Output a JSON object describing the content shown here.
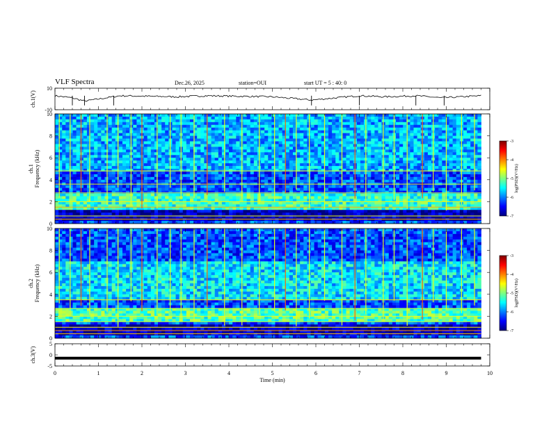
{
  "header": {
    "title": "VLF Spectra",
    "date": "Dec.26, 2025",
    "station": "station=OUI",
    "start": "start UT =  5 : 40: 0"
  },
  "chart_data": [
    {
      "type": "line",
      "panel": "ch1-waveform",
      "ylabel": "ch.1(V)",
      "ylim": [
        -10,
        10
      ],
      "ytick_labels": [
        "10",
        "-10"
      ],
      "x": [
        0,
        0.4,
        0.68,
        1.5,
        2.8,
        3.5,
        5.0,
        5.9,
        7.0,
        7.6,
        8.3,
        8.9,
        9.8
      ],
      "values": [
        3,
        1,
        -2,
        3,
        2,
        3,
        2,
        -1,
        3,
        2,
        3,
        1,
        3
      ]
    },
    {
      "type": "heatmap",
      "panel": "ch1-spectrogram",
      "ylabel_top": "ch.1",
      "ylabel": "Frequency (kHz)",
      "ylim": [
        0,
        10
      ],
      "ytick_labels": [
        "0",
        "2",
        "4",
        "6",
        "8",
        "10"
      ],
      "colorbar": {
        "label": "log(PSD)(V²/Hz)",
        "range": [
          -7,
          -3
        ],
        "tick_labels": [
          "-3",
          "-4",
          "-5",
          "-6",
          "-7"
        ]
      },
      "bands_khz": [
        {
          "from": 1.3,
          "to": 2.8,
          "level": -5.3
        },
        {
          "from": 4.8,
          "to": 10,
          "level": -5.8
        },
        {
          "from": 0.3,
          "to": 1.2,
          "level": -6.8
        }
      ],
      "lines_khz": [
        0.4,
        0.7,
        1.5,
        2.0,
        2.8,
        3.6,
        4.8
      ],
      "bursts_min": [
        0.1,
        0.35,
        0.6,
        0.8,
        1.2,
        1.45,
        1.75,
        2.0,
        2.35,
        2.65,
        2.9,
        3.2,
        3.5,
        3.9,
        4.3,
        4.7,
        5.05,
        5.3,
        5.55,
        5.85,
        6.2,
        6.6,
        6.9,
        7.15,
        7.55,
        7.8,
        8.1,
        8.45,
        8.7,
        9.0,
        9.35,
        9.65
      ]
    },
    {
      "type": "heatmap",
      "panel": "ch2-spectrogram",
      "ylabel_top": "ch.2",
      "ylabel": "Frequency (kHz)",
      "ylim": [
        0,
        10
      ],
      "ytick_labels": [
        "0",
        "2",
        "4",
        "6",
        "8",
        "10"
      ],
      "colorbar": {
        "label": "log(PSD)(V²/Hz)",
        "range": [
          -7,
          -3
        ],
        "tick_labels": [
          "-3",
          "-4",
          "-5",
          "-6",
          "-7"
        ]
      },
      "bands_khz": [
        {
          "from": 1.5,
          "to": 2.8,
          "level": -5.2
        },
        {
          "from": 3.6,
          "to": 7.0,
          "level": -5.6
        },
        {
          "from": 0.3,
          "to": 1.3,
          "level": -6.8
        }
      ],
      "lines_khz": [
        0.4,
        0.7,
        1.0,
        1.5,
        2.0,
        2.7,
        3.5
      ],
      "bursts_min": [
        0.1,
        0.35,
        0.6,
        0.8,
        1.2,
        1.45,
        1.75,
        2.0,
        2.35,
        2.65,
        2.9,
        3.2,
        3.5,
        3.9,
        4.3,
        4.7,
        5.05,
        5.3,
        5.55,
        5.85,
        6.2,
        6.6,
        6.9,
        7.15,
        7.55,
        7.8,
        8.1,
        8.45,
        8.7,
        9.0,
        9.35,
        9.65
      ]
    },
    {
      "type": "line",
      "panel": "ch3-waveform",
      "ylabel": "ch.3(V)",
      "ylim": [
        -5,
        5
      ],
      "ytick_labels": [
        "5",
        "0",
        "-5"
      ],
      "x": [
        0,
        9.8
      ],
      "values": [
        -1.5,
        -1.5
      ]
    }
  ],
  "xaxis": {
    "label": "Time (min)",
    "xlim": [
      0,
      10
    ],
    "tick_labels": [
      "0",
      "1",
      "2",
      "3",
      "4",
      "5",
      "6",
      "7",
      "8",
      "9",
      "10"
    ]
  },
  "colors": {
    "cmap": [
      "#00007f",
      "#0000ff",
      "#007fff",
      "#00ffff",
      "#7fff7f",
      "#ffff00",
      "#ff7f00",
      "#ff0000",
      "#7f0000"
    ],
    "waveform": "#000000"
  }
}
